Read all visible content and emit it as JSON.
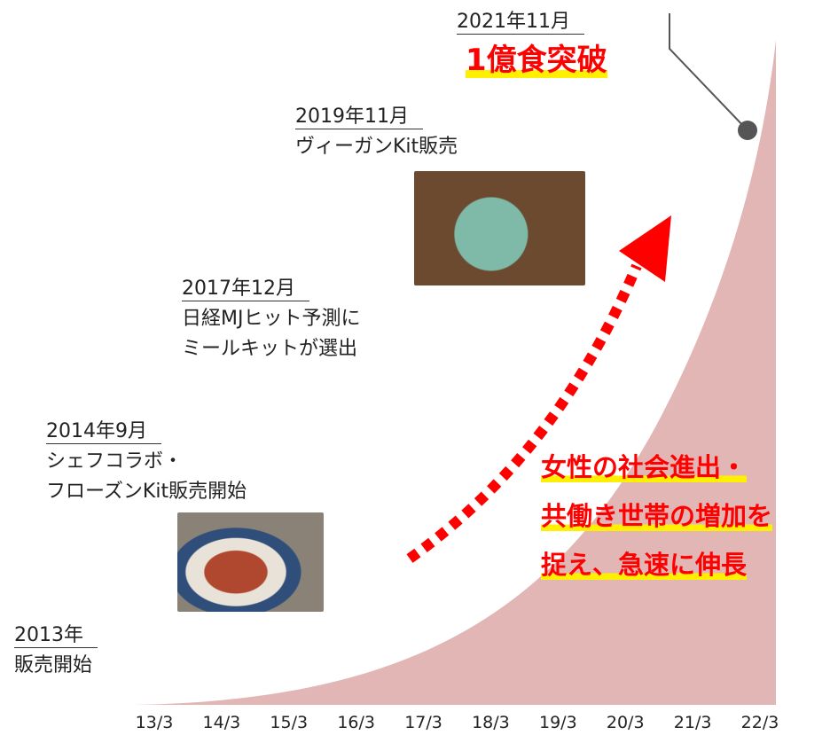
{
  "milestones": [
    {
      "date": "2013年",
      "text": [
        "販売開始"
      ]
    },
    {
      "date": "2014年9月",
      "text": [
        "シェフコラボ・",
        "フローズンKit販売開始"
      ]
    },
    {
      "date": "2017年12月",
      "text": [
        "日経MJヒット予測に",
        "ミールキットが選出"
      ]
    },
    {
      "date": "2019年11月",
      "text": [
        "ヴィーガンKit販売"
      ]
    },
    {
      "date": "2021年11月",
      "text": [
        "1億食突破"
      ]
    }
  ],
  "annotation": [
    "女性の社会進出・",
    "共働き世帯の増加を",
    "捉え、急速に伸長"
  ],
  "x_axis": {
    "labels": [
      "13/3",
      "14/3",
      "15/3",
      "16/3",
      "17/3",
      "18/3",
      "19/3",
      "20/3",
      "21/3",
      "22/3"
    ]
  }
}
